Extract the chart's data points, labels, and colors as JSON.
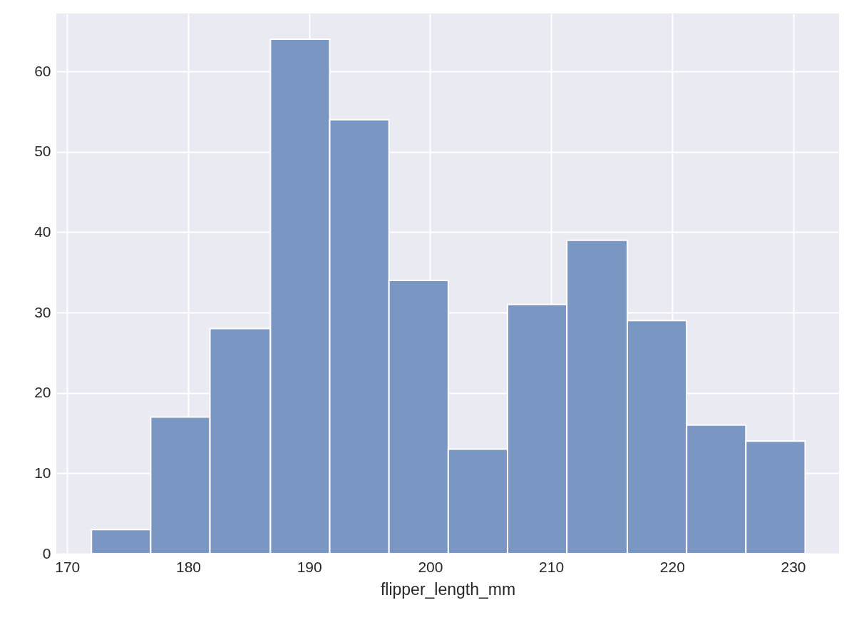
{
  "chart_data": {
    "type": "histogram",
    "xlabel": "flipper_length_mm",
    "bins": [
      172,
      176.9,
      181.8,
      186.8,
      191.7,
      196.6,
      201.5,
      206.4,
      211.3,
      216.3,
      221.2,
      226.1,
      231
    ],
    "values": [
      3,
      17,
      28,
      64,
      54,
      34,
      13,
      31,
      39,
      29,
      16,
      14
    ],
    "color": "#7a97c4",
    "xlim": [
      169.1,
      233.8
    ],
    "xticks": [
      170,
      180,
      190,
      200,
      210,
      220,
      230
    ],
    "ylim": [
      0,
      67.2
    ],
    "yticks": [
      0,
      10,
      20,
      30,
      40,
      50,
      60
    ],
    "grid": true
  }
}
